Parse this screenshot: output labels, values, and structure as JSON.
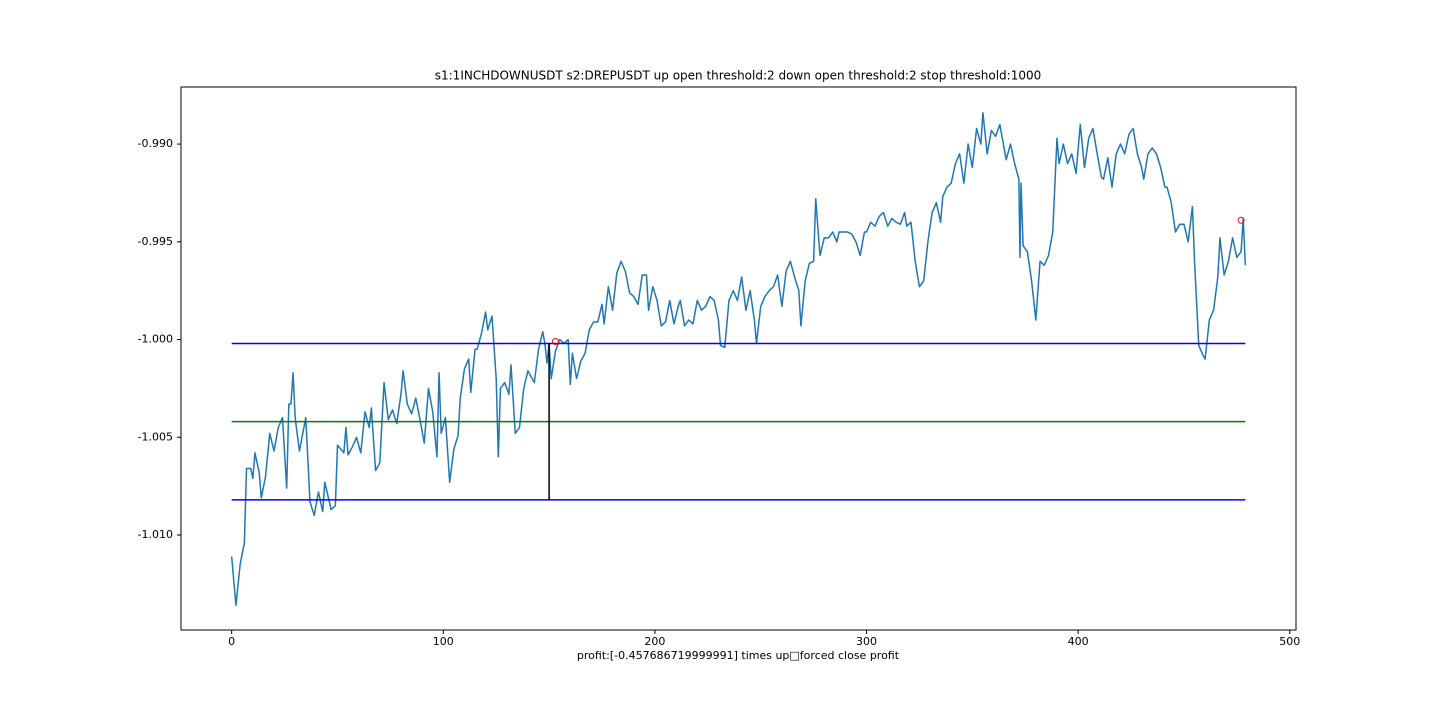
{
  "chart_data": {
    "type": "line",
    "title": "s1:1INCHDOWNUSDT s2:DREPUSDT up open threshold:2 down open threshold:2 stop threshold:1000",
    "xlabel": "profit:[-0.457686719999991] times up□forced close profit",
    "color": "#1f77b4",
    "x": [
      0,
      2,
      4,
      6,
      7,
      9,
      10,
      11,
      13,
      14,
      16,
      18,
      20,
      22,
      24,
      26,
      27,
      28,
      29,
      30,
      32,
      35,
      37,
      39,
      41,
      43,
      44,
      47,
      49,
      50,
      53,
      54,
      55,
      57,
      59,
      61,
      63,
      65,
      66,
      68,
      70,
      72,
      74,
      76,
      78,
      80,
      81,
      83,
      85,
      87,
      89,
      91,
      93,
      95,
      97,
      98,
      99,
      101,
      103,
      105,
      107,
      108,
      110,
      112,
      113,
      115,
      116,
      118,
      120,
      121,
      123,
      125,
      126,
      127,
      129,
      131,
      132,
      134,
      136,
      138,
      140,
      142,
      143,
      145,
      147,
      148,
      149,
      150,
      151,
      153,
      155,
      157,
      159,
      160,
      161,
      163,
      165,
      167,
      169,
      171,
      173,
      175,
      176,
      178,
      180,
      182,
      184,
      186,
      188,
      190,
      192,
      194,
      196,
      197,
      199,
      201,
      203,
      205,
      207,
      209,
      211,
      212,
      214,
      216,
      218,
      220,
      222,
      224,
      226,
      228,
      230,
      231,
      233,
      235,
      237,
      239,
      241,
      243,
      245,
      247,
      248,
      250,
      252,
      254,
      256,
      258,
      260,
      262,
      264,
      266,
      268,
      269,
      271,
      273,
      275,
      276,
      278,
      280,
      282,
      284,
      286,
      287,
      289,
      291,
      293,
      295,
      297,
      299,
      300,
      302,
      304,
      306,
      308,
      310,
      312,
      314,
      316,
      318,
      319,
      321,
      323,
      325,
      327,
      329,
      331,
      333,
      335,
      336,
      338,
      340,
      342,
      344,
      346,
      348,
      350,
      352,
      354,
      355,
      357,
      359,
      361,
      363,
      364,
      366,
      368,
      370,
      372,
      372.5,
      373,
      374,
      376,
      378,
      380,
      382,
      384,
      386,
      388,
      390,
      391,
      393,
      395,
      397,
      399,
      401,
      403,
      405,
      407,
      409,
      411,
      412,
      414,
      416,
      418,
      420,
      422,
      424,
      426,
      428,
      430,
      431,
      433,
      435,
      437,
      439,
      441,
      442,
      444,
      446,
      448,
      450,
      452,
      454,
      455,
      457,
      459,
      460,
      462,
      464,
      466,
      467,
      469,
      471,
      473,
      475,
      477,
      478,
      479
    ],
    "values": [
      -1.0111,
      -1.0136,
      -1.0115,
      -1.0104,
      -1.0066,
      -1.0066,
      -1.0071,
      -1.0058,
      -1.0068,
      -1.0081,
      -1.007,
      -1.0048,
      -1.0057,
      -1.0045,
      -1.004,
      -1.0076,
      -1.0033,
      -1.0033,
      -1.0017,
      -1.004,
      -1.0057,
      -1.004,
      -1.0083,
      -1.009,
      -1.0078,
      -1.0088,
      -1.0073,
      -1.0087,
      -1.0085,
      -1.0054,
      -1.0058,
      -1.0045,
      -1.0059,
      -1.0055,
      -1.005,
      -1.0058,
      -1.0037,
      -1.0045,
      -1.0035,
      -1.0067,
      -1.0063,
      -1.0022,
      -1.0041,
      -1.0036,
      -1.0043,
      -1.0028,
      -1.0016,
      -1.0033,
      -1.0038,
      -1.003,
      -1.0041,
      -1.0053,
      -1.0025,
      -1.0037,
      -1.006,
      -1.0017,
      -1.0048,
      -1.004,
      -1.0073,
      -1.0056,
      -1.0049,
      -1.003,
      -1.0015,
      -1.001,
      -1.0027,
      -1.0005,
      -1.0005,
      -0.9997,
      -0.9986,
      -0.9995,
      -0.9988,
      -1.002,
      -1.006,
      -1.0025,
      -1.0022,
      -1.0028,
      -1.0013,
      -1.0048,
      -1.0045,
      -1.0025,
      -1.0016,
      -1.002,
      -1.0022,
      -1.0005,
      -0.9996,
      -1.0002,
      -1.0012,
      -1.0002,
      -1.002,
      -1.0006,
      -1.0,
      -1.0002,
      -1.0,
      -1.0023,
      -1.0007,
      -1.002,
      -1.0011,
      -1.0007,
      -0.9995,
      -0.9991,
      -0.9991,
      -0.9982,
      -0.9992,
      -0.9973,
      -0.9985,
      -0.9966,
      -0.996,
      -0.9965,
      -0.9976,
      -0.9978,
      -0.9982,
      -0.9967,
      -0.9967,
      -0.9985,
      -0.9973,
      -0.998,
      -0.9993,
      -0.9991,
      -0.998,
      -0.9992,
      -0.9983,
      -0.998,
      -0.9993,
      -0.999,
      -0.9992,
      -0.998,
      -0.9985,
      -0.9983,
      -0.9978,
      -0.998,
      -0.999,
      -1.0003,
      -1.0004,
      -0.998,
      -0.9975,
      -0.998,
      -0.9968,
      -0.9985,
      -0.9975,
      -0.999,
      -1.0002,
      -0.9983,
      -0.9978,
      -0.9975,
      -0.9973,
      -0.9967,
      -0.9983,
      -0.9965,
      -0.996,
      -0.9968,
      -0.9975,
      -0.9993,
      -0.997,
      -0.9961,
      -0.996,
      -0.9928,
      -0.9957,
      -0.9948,
      -0.9948,
      -0.9945,
      -0.995,
      -0.9945,
      -0.9945,
      -0.9945,
      -0.9946,
      -0.995,
      -0.9957,
      -0.9945,
      -0.9945,
      -0.994,
      -0.9942,
      -0.9937,
      -0.9935,
      -0.9942,
      -0.9938,
      -0.994,
      -0.9941,
      -0.9935,
      -0.9942,
      -0.994,
      -0.996,
      -0.9973,
      -0.997,
      -0.995,
      -0.9935,
      -0.993,
      -0.994,
      -0.9927,
      -0.9922,
      -0.992,
      -0.991,
      -0.9905,
      -0.992,
      -0.99,
      -0.9912,
      -0.9892,
      -0.99,
      -0.9884,
      -0.9905,
      -0.9893,
      -0.9896,
      -0.989,
      -0.9896,
      -0.9908,
      -0.99,
      -0.991,
      -0.9918,
      -0.9958,
      -0.992,
      -0.9952,
      -0.9955,
      -0.997,
      -0.999,
      -0.996,
      -0.9962,
      -0.9957,
      -0.9945,
      -0.9897,
      -0.991,
      -0.99,
      -0.991,
      -0.9905,
      -0.9915,
      -0.989,
      -0.9912,
      -0.9897,
      -0.9892,
      -0.9905,
      -0.9917,
      -0.9918,
      -0.9907,
      -0.9922,
      -0.9905,
      -0.99,
      -0.9905,
      -0.9895,
      -0.9892,
      -0.9905,
      -0.9912,
      -0.9918,
      -0.9905,
      -0.9902,
      -0.9905,
      -0.9912,
      -0.9922,
      -0.9922,
      -0.993,
      -0.9945,
      -0.9941,
      -0.9941,
      -0.995,
      -0.9932,
      -0.996,
      -1.0003,
      -1.0008,
      -1.001,
      -0.999,
      -0.9985,
      -0.9968,
      -0.9948,
      -0.9967,
      -0.996,
      -0.9948,
      -0.9958,
      -0.9955,
      -0.9938,
      -0.9962
    ],
    "hlines": [
      {
        "y": -1.0002,
        "xmin": 0,
        "xmax": 479,
        "color": "#0000ff"
      },
      {
        "y": -1.0042,
        "xmin": 0,
        "xmax": 479,
        "color": "#008000"
      },
      {
        "y": -1.0082,
        "xmin": 0,
        "xmax": 479,
        "color": "#0000ff"
      }
    ],
    "vline": {
      "x": 150,
      "ymin": -1.0082,
      "ymax": -1.0002,
      "color": "#000000"
    },
    "markers": {
      "x": [
        153,
        477
      ],
      "y": [
        -1.0001,
        -0.9939
      ],
      "color": "#ff0000"
    },
    "xlim": [
      -23.95,
      502.95
    ],
    "ylim": [
      -1.01486,
      -0.98708
    ],
    "xticks": [
      0,
      100,
      200,
      300,
      400,
      500
    ],
    "yticks": [
      {
        "value": -1.01,
        "label": "-1.010"
      },
      {
        "value": -1.005,
        "label": "-1.005"
      },
      {
        "value": -1.0,
        "label": "-1.000"
      },
      {
        "value": -0.995,
        "label": "-0.995"
      },
      {
        "value": -0.99,
        "label": "-0.990"
      }
    ]
  }
}
